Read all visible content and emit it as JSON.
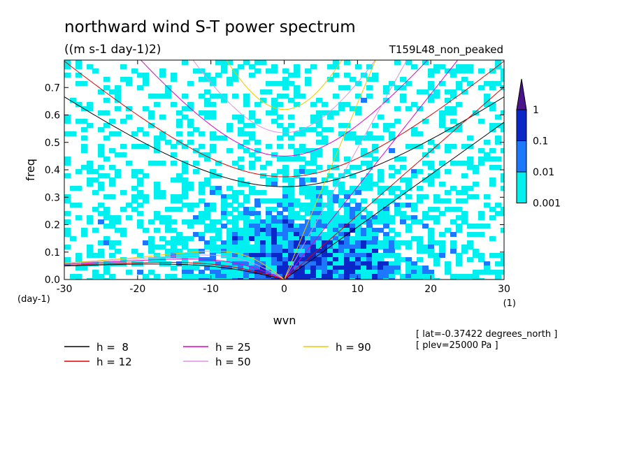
{
  "chart_data": {
    "type": "heatmap",
    "title": "northward wind S-T power spectrum",
    "units": "((m s-1 day-1)2)",
    "run_label": "T159L48_non_peaked",
    "xlabel": "wvn",
    "ylabel": "freq",
    "x_unit": "(1)",
    "y_unit": "(day-1)",
    "xlim": [
      -30,
      30
    ],
    "ylim": [
      0,
      0.8
    ],
    "x_ticks": [
      "-30",
      "-20",
      "-10",
      "0",
      "10",
      "20",
      "30"
    ],
    "y_ticks": [
      "0.0",
      "0.1",
      "0.2",
      "0.3",
      "0.4",
      "0.5",
      "0.6",
      "0.7"
    ],
    "colorbar": {
      "levels": [
        "0.001",
        "0.01",
        "0.1",
        "1"
      ],
      "colors": [
        "#00f0f0",
        "#1e78ff",
        "#0a28c8",
        "#4a148c"
      ]
    },
    "contour_summary": [
      {
        "level": "0.001-0.01",
        "extent": "background over most of domain"
      },
      {
        "level": "0.01-0.1",
        "extent": "wvn -10 to 20, freq 0 to 0.45"
      },
      {
        "level": "0.1-1",
        "extent": "wvn -8 to 12, freq 0 to 0.25"
      }
    ],
    "dispersion_curves": [
      {
        "name": "h =  8",
        "equivalent_depth": 8,
        "color": "#000000"
      },
      {
        "name": "h = 12",
        "equivalent_depth": 12,
        "color": "#e00000"
      },
      {
        "name": "h = 25",
        "equivalent_depth": 25,
        "color": "#e000c8"
      },
      {
        "name": "h = 50",
        "equivalent_depth": 50,
        "color": "#e090e0"
      },
      {
        "name": "h = 90",
        "equivalent_depth": 90,
        "color": "#f0c800"
      }
    ],
    "info": [
      "[ lat=-0.37422 degrees_north ]",
      "[ plev=25000 Pa ]"
    ]
  }
}
